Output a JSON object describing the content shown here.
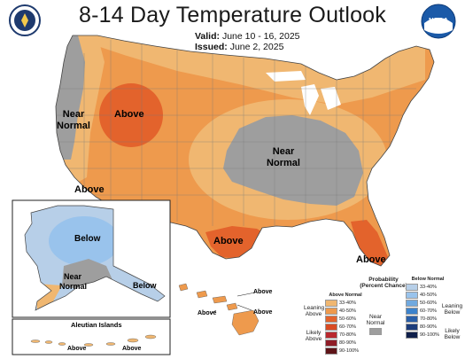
{
  "title": "8-14 Day Temperature Outlook",
  "valid_label": "Valid:",
  "valid_value": "June 10 - 16, 2025",
  "issued_label": "Issued:",
  "issued_value": "June 2, 2025",
  "logos": {
    "left": "commerce-seal-icon",
    "right": "noaa-logo-icon",
    "right_text": "NOAA"
  },
  "colors": {
    "above_33_40": "#f0b771",
    "above_40_50": "#ee9a4d",
    "above_50_60": "#e3632c",
    "above_60_70": "#d94a22",
    "above_70_80": "#b9292e",
    "above_80_90": "#8f1d27",
    "above_90_100": "#5e1418",
    "below_33_40": "#b7cfe8",
    "below_40_50": "#99c3ec",
    "below_50_60": "#70a9df",
    "below_60_70": "#3d83cc",
    "below_70_80": "#2a5fa8",
    "below_80_90": "#1c3c7b",
    "below_90_100": "#0f1f4a",
    "near_normal": "#9e9e9e"
  },
  "map_labels": {
    "near_normal_west": "Near Normal",
    "above_rockies": "Above",
    "near_normal_midwest": "Near Normal",
    "above_southwest": "Above",
    "above_texas": "Above",
    "above_florida": "Above",
    "alaska_below": "Below",
    "alaska_near_normal": "Near Normal",
    "alaska_below_panhandle": "Below",
    "aleutian_title": "Aleutian Islands",
    "aleutian_above_1": "Above",
    "aleutian_above_2": "Above",
    "hawaii_above_1": "Above",
    "hawaii_above_2": "Above",
    "hawaii_above_3": "Above"
  },
  "legend": {
    "title": "Probability",
    "subtitle": "(Percent Chance)",
    "above_header": "Above Normal",
    "below_header": "Below Normal",
    "near_normal": "Near Normal",
    "leaning_above": "Leaning Above",
    "likely_above": "Likely Above",
    "leaning_below": "Leaning Below",
    "likely_below": "Likely Below",
    "ranges": [
      "33-40%",
      "40-50%",
      "50-60%",
      "60-70%",
      "70-80%",
      "80-90%",
      "90-100%"
    ]
  }
}
